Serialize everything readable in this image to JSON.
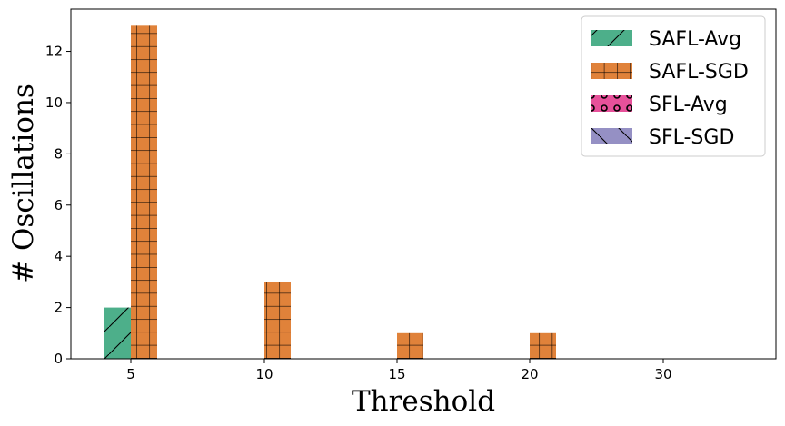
{
  "chart_data": {
    "type": "bar",
    "categories": [
      "5",
      "10",
      "15",
      "20",
      "30"
    ],
    "series": [
      {
        "name": "SAFL-Avg",
        "values": [
          2,
          0,
          0,
          0,
          0
        ],
        "color": "#4daf8a",
        "hatch": "forward-diagonal"
      },
      {
        "name": "SAFL-SGD",
        "values": [
          13,
          3,
          1,
          1,
          0
        ],
        "color": "#e0823a",
        "hatch": "grid"
      },
      {
        "name": "SFL-Avg",
        "values": [
          0,
          0,
          0,
          0,
          0
        ],
        "color": "#e7519a",
        "hatch": "circles"
      },
      {
        "name": "SFL-SGD",
        "values": [
          0,
          0,
          0,
          0,
          0
        ],
        "color": "#9590c4",
        "hatch": "back-diagonal"
      }
    ],
    "xlabel": "Threshold",
    "ylabel": "# Oscillations",
    "ylim": [
      0,
      13.65
    ],
    "yticks": [
      0,
      2,
      4,
      6,
      8,
      10,
      12
    ],
    "grid": false,
    "legend_position": "top-right"
  }
}
